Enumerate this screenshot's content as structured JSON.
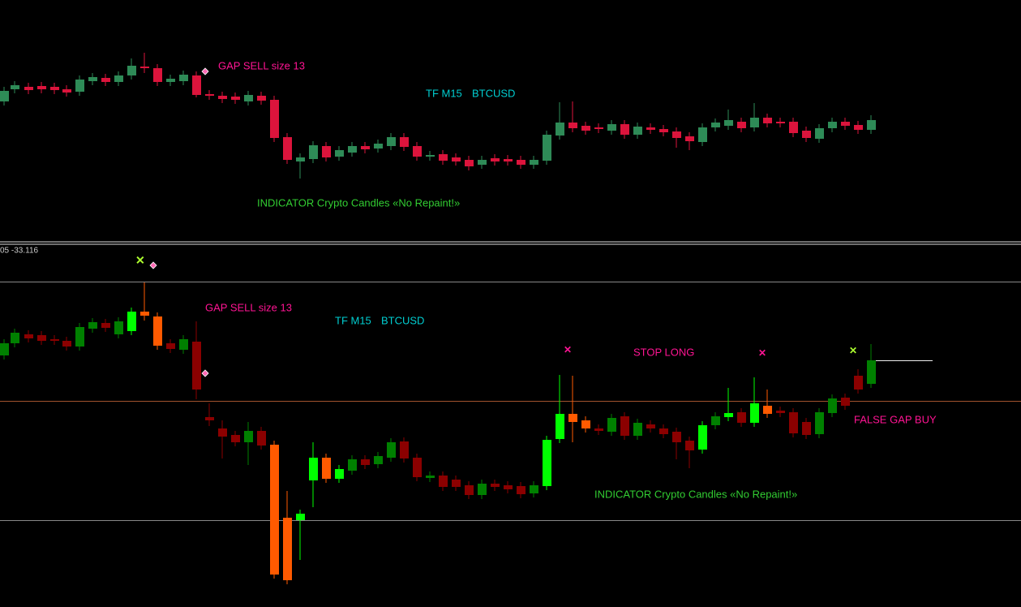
{
  "top_panel": {
    "gap_label": "GAP SELL size 13",
    "timeframe": "TF M15",
    "symbol": "BTCUSD",
    "indicator": "INDICATOR Crypto Candles  «No Repaint!»"
  },
  "bottom_panel": {
    "header": "05 -33.116",
    "gap_label": "GAP SELL size 13",
    "timeframe": "TF M15",
    "symbol": "BTCUSD",
    "stop_label": "STOP LONG",
    "false_gap_label": "FALSE GAP BUY",
    "indicator": "INDICATOR Crypto Candles  «No Repaint!»"
  }
}
